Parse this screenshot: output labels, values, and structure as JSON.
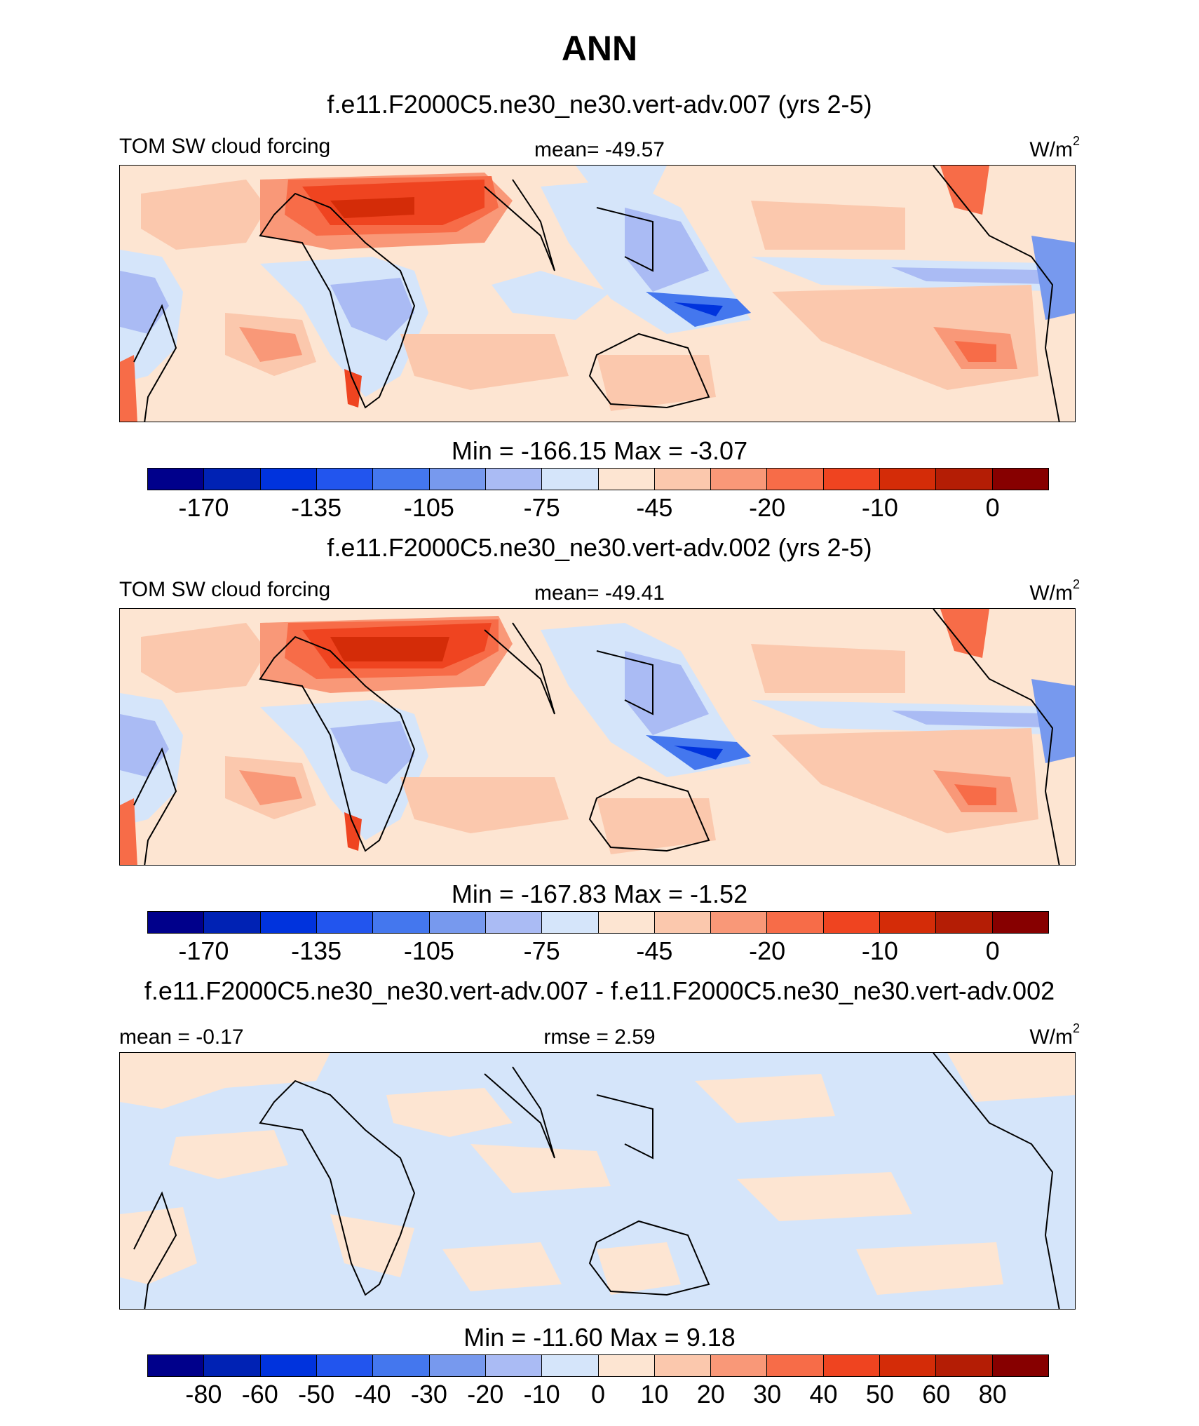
{
  "title": "ANN",
  "units_label": "W/m",
  "units_sup": "2",
  "panels": [
    {
      "title": "f.e11.F2000C5.ne30_ne30.vert-adv.007 (yrs 2-5)",
      "left_label": "TOM SW cloud forcing",
      "center_label": "mean= -49.57",
      "minmax": "Min = -166.15 Max =   -3.07"
    },
    {
      "title": "f.e11.F2000C5.ne30_ne30.vert-adv.002 (yrs 2-5)",
      "left_label": "TOM SW cloud forcing",
      "center_label": "mean= -49.41",
      "minmax": "Min = -167.83 Max =   -1.52"
    },
    {
      "title": "f.e11.F2000C5.ne30_ne30.vert-adv.007 - f.e11.F2000C5.ne30_ne30.vert-adv.002",
      "left_label": "mean =  -0.17",
      "center_label": "rmse =   2.59",
      "minmax": "Min = -11.60 Max =   9.18"
    }
  ],
  "colorbar_colors": [
    "#00008b",
    "#0022b4",
    "#0033dd",
    "#2255ee",
    "#4477ee",
    "#7799ee",
    "#aabbf4",
    "#d5e5fa",
    "#fde5d2",
    "#fbc8ad",
    "#f99878",
    "#f76c48",
    "#ef4420",
    "#d42c08",
    "#b41d05",
    "#870000"
  ],
  "colorbar_ticks_abs": [
    "-170",
    "-135",
    "-105",
    "-75",
    "-45",
    "-20",
    "-10",
    "0"
  ],
  "colorbar_ticks_diff": [
    "-80",
    "-60",
    "-50",
    "-40",
    "-30",
    "-20",
    "-10",
    "0",
    "10",
    "20",
    "30",
    "40",
    "50",
    "60",
    "80"
  ]
}
